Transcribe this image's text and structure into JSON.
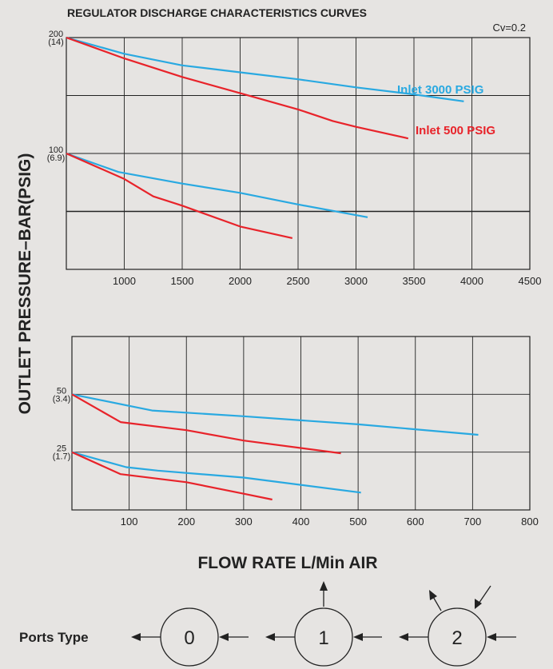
{
  "title": "REGULATOR DISCHARGE CHARACTERISTICS CURVES",
  "cv_label": "Cv=0.2",
  "ylabel": "OUTLET PRESSURE–BAR(PSIG)",
  "xlabel": "FLOW RATE  L/Min AIR",
  "colors": {
    "blue": "#29a9e1",
    "red": "#e8232a",
    "grid": "#222222"
  },
  "chart_data": [
    {
      "type": "line",
      "xlim": [
        500,
        4500
      ],
      "ylim": [
        0,
        200
      ],
      "x_ticks": [
        1000,
        1500,
        2000,
        2500,
        3000,
        3500,
        4000,
        4500
      ],
      "x_tick_labels": [
        "1000",
        "1500",
        "2000",
        "2500",
        "3000",
        "3500",
        "4000",
        "4500"
      ],
      "y_ticks": [
        {
          "value": 200,
          "label": "200",
          "sub": "(14)"
        },
        {
          "value": 100,
          "label": "100",
          "sub": "(6.9)"
        }
      ],
      "legend": [
        {
          "label": "Inlet 3000 PSIG",
          "color": "#29a9e1"
        },
        {
          "label": "Inlet 500 PSIG",
          "color": "#e8232a"
        }
      ],
      "series": [
        {
          "inlet": "3000",
          "x": [
            500,
            1000,
            1500,
            2000,
            2500,
            3000,
            3500,
            3930
          ],
          "y": [
            200,
            186,
            176,
            170,
            164,
            157,
            151,
            145
          ]
        },
        {
          "inlet": "500",
          "x": [
            500,
            1000,
            1500,
            2000,
            2500,
            2800,
            3000,
            3450
          ],
          "y": [
            200,
            182,
            166,
            152,
            138,
            128,
            123,
            113
          ]
        },
        {
          "inlet": "3000",
          "x": [
            500,
            950,
            1500,
            2000,
            2500,
            3100
          ],
          "y": [
            100,
            84,
            74,
            66,
            56,
            45
          ]
        },
        {
          "inlet": "500",
          "x": [
            500,
            1000,
            1250,
            1500,
            2000,
            2450
          ],
          "y": [
            100,
            78,
            63,
            55,
            37,
            27
          ]
        }
      ]
    },
    {
      "type": "line",
      "xlim": [
        0,
        800
      ],
      "ylim": [
        0,
        75
      ],
      "x_ticks": [
        100,
        200,
        300,
        400,
        500,
        600,
        700,
        800
      ],
      "x_tick_labels": [
        "100",
        "200",
        "300",
        "400",
        "500",
        "600",
        "700",
        "800"
      ],
      "y_ticks": [
        {
          "value": 50,
          "label": "50",
          "sub": "(3.4)"
        },
        {
          "value": 25,
          "label": "25",
          "sub": "(1.7)"
        }
      ],
      "series": [
        {
          "inlet": "3000",
          "x": [
            0,
            140,
            300,
            500,
            710
          ],
          "y": [
            50,
            43,
            40.5,
            37,
            32.5
          ]
        },
        {
          "inlet": "500",
          "x": [
            0,
            85,
            200,
            300,
            470
          ],
          "y": [
            50,
            38,
            34.5,
            30,
            24.5
          ]
        },
        {
          "inlet": "3000",
          "x": [
            0,
            95,
            150,
            300,
            505
          ],
          "y": [
            25,
            18.5,
            17,
            14,
            7.5
          ]
        },
        {
          "inlet": "500",
          "x": [
            0,
            85,
            200,
            300,
            350
          ],
          "y": [
            25,
            15.5,
            12,
            7,
            4.5
          ]
        }
      ]
    }
  ],
  "ports": {
    "label": "Ports Type",
    "types": [
      "0",
      "1",
      "2"
    ]
  }
}
